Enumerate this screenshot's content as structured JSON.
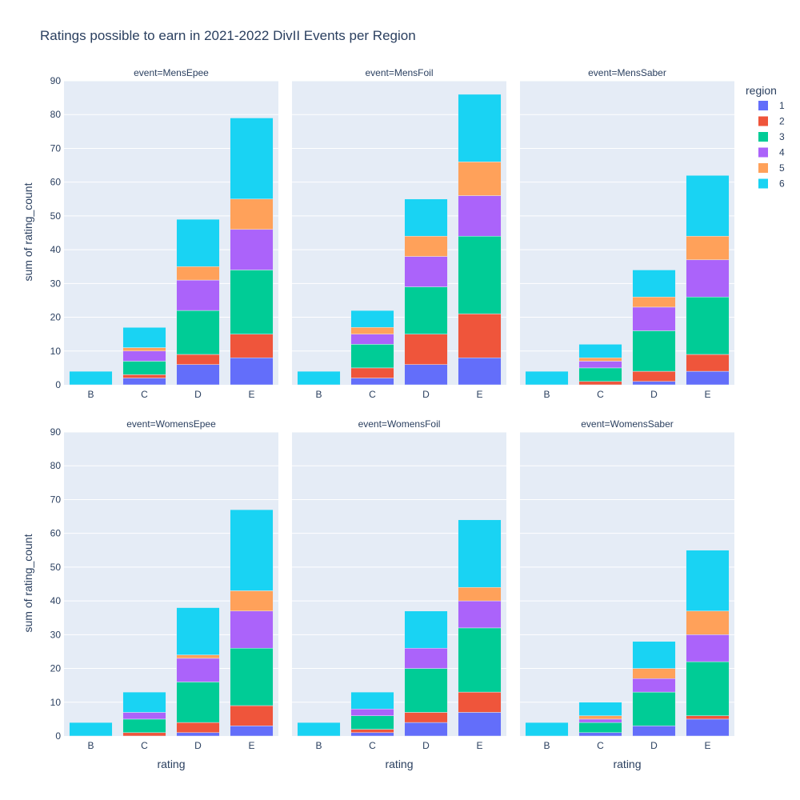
{
  "chart_data": {
    "type": "bar",
    "barmode": "stack",
    "title": "Ratings possible to earn in 2021-2022 DivII Events per Region",
    "xlabel": "rating",
    "ylabel": "sum of rating_count",
    "ylim": [
      0,
      90
    ],
    "yticks": [
      "0",
      "10",
      "20",
      "30",
      "40",
      "50",
      "60",
      "70",
      "80",
      "90"
    ],
    "categories": [
      "B",
      "C",
      "D",
      "E"
    ],
    "legend": {
      "title": "region",
      "placement": "top-right",
      "entries": [
        {
          "label": "1",
          "color": "#636efa"
        },
        {
          "label": "2",
          "color": "#ef553b"
        },
        {
          "label": "3",
          "color": "#00cc96"
        },
        {
          "label": "4",
          "color": "#ab63fa"
        },
        {
          "label": "5",
          "color": "#ffa15a"
        },
        {
          "label": "6",
          "color": "#19d3f3"
        }
      ]
    },
    "grid": true,
    "facets": [
      {
        "title": "event=MensEpee",
        "values": {
          "B": [
            0,
            0,
            0,
            0,
            0,
            4
          ],
          "C": [
            2,
            1,
            4,
            3,
            1,
            6
          ],
          "D": [
            6,
            3,
            13,
            9,
            4,
            14
          ],
          "E": [
            8,
            7,
            19,
            12,
            9,
            24
          ]
        }
      },
      {
        "title": "event=MensFoil",
        "values": {
          "B": [
            0,
            0,
            0,
            0,
            0,
            4
          ],
          "C": [
            2,
            3,
            7,
            3,
            2,
            5
          ],
          "D": [
            6,
            9,
            14,
            9,
            6,
            11
          ],
          "E": [
            8,
            13,
            23,
            12,
            10,
            20
          ]
        }
      },
      {
        "title": "event=MensSaber",
        "values": {
          "B": [
            0,
            0,
            0,
            0,
            0,
            4
          ],
          "C": [
            0,
            1,
            4,
            2,
            1,
            4
          ],
          "D": [
            1,
            3,
            12,
            7,
            3,
            8
          ],
          "E": [
            4,
            5,
            17,
            11,
            7,
            18
          ]
        }
      },
      {
        "title": "event=WomensEpee",
        "values": {
          "B": [
            0,
            0,
            0,
            0,
            0,
            4
          ],
          "C": [
            0,
            1,
            4,
            2,
            0,
            6
          ],
          "D": [
            1,
            3,
            12,
            7,
            1,
            14
          ],
          "E": [
            3,
            6,
            17,
            11,
            6,
            24
          ]
        }
      },
      {
        "title": "event=WomensFoil",
        "values": {
          "B": [
            0,
            0,
            0,
            0,
            0,
            4
          ],
          "C": [
            1,
            1,
            4,
            2,
            0,
            5
          ],
          "D": [
            4,
            3,
            13,
            6,
            0,
            11
          ],
          "E": [
            7,
            6,
            19,
            8,
            4,
            20
          ]
        }
      },
      {
        "title": "event=WomensSaber",
        "values": {
          "B": [
            0,
            0,
            0,
            0,
            0,
            4
          ],
          "C": [
            1,
            0,
            3,
            1,
            1,
            4
          ],
          "D": [
            3,
            0,
            10,
            4,
            3,
            8
          ],
          "E": [
            5,
            1,
            16,
            8,
            7,
            18
          ]
        }
      }
    ]
  }
}
